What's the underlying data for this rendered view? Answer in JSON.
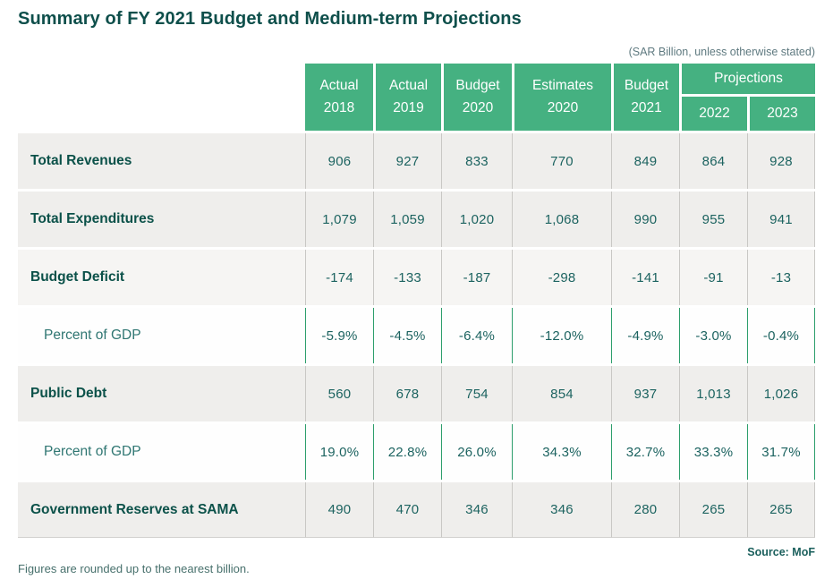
{
  "page": {
    "title": "Summary of FY 2021 Budget and Medium-term Projections",
    "unit_note": "(SAR Billion, unless otherwise stated)",
    "source": "Source: MoF",
    "footnote": "Figures are rounded up to the nearest billion."
  },
  "table": {
    "column_headers": [
      {
        "line1": "Actual",
        "line2": "2018"
      },
      {
        "line1": "Actual",
        "line2": "2019"
      },
      {
        "line1": "Budget",
        "line2": "2020"
      },
      {
        "line1": "Estimates",
        "line2": "2020"
      },
      {
        "line1": "Budget",
        "line2": "2021"
      }
    ],
    "projections_header": {
      "label": "Projections",
      "years": [
        "2022",
        "2023"
      ]
    },
    "rows": [
      {
        "label": "Total Revenues",
        "values": [
          "906",
          "927",
          "833",
          "770",
          "849",
          "864",
          "928"
        ]
      },
      {
        "label": "Total Expenditures",
        "values": [
          "1,079",
          "1,059",
          "1,020",
          "1,068",
          "990",
          "955",
          "941"
        ]
      },
      {
        "label": "Budget Deficit",
        "values": [
          "-174",
          "-133",
          "-187",
          "-298",
          "-141",
          "-91",
          "-13"
        ]
      },
      {
        "label": "Percent of GDP",
        "values": [
          "-5.9%",
          "-4.5%",
          "-6.4%",
          "-12.0%",
          "-4.9%",
          "-3.0%",
          "-0.4%"
        ]
      },
      {
        "label": "Public Debt",
        "values": [
          "560",
          "678",
          "754",
          "854",
          "937",
          "1,013",
          "1,026"
        ]
      },
      {
        "label": "Percent of GDP",
        "values": [
          "19.0%",
          "22.8%",
          "26.0%",
          "34.3%",
          "32.7%",
          "33.3%",
          "31.7%"
        ]
      },
      {
        "label": "Government Reserves at SAMA",
        "values": [
          "490",
          "470",
          "346",
          "346",
          "280",
          "265",
          "265"
        ]
      }
    ]
  },
  "colors": {
    "header_green": "#45b181",
    "green_divider": "#2d9e6c",
    "gray_divider": "#c9c8c5",
    "gray_row": "#efeeec",
    "light_row": "#f6f5f3",
    "title_teal": "#0e4f4b",
    "number_teal": "#1c6360"
  },
  "chart_data": {
    "type": "table",
    "title": "Summary of FY 2021 Budget and Medium-term Projections",
    "unit": "SAR Billion, unless otherwise stated",
    "columns": [
      "Actual 2018",
      "Actual 2019",
      "Budget 2020",
      "Estimates 2020",
      "Budget 2021",
      "Projections 2022",
      "Projections 2023"
    ],
    "rows": [
      {
        "label": "Total Revenues",
        "values": [
          906,
          927,
          833,
          770,
          849,
          864,
          928
        ]
      },
      {
        "label": "Total Expenditures",
        "values": [
          1079,
          1059,
          1020,
          1068,
          990,
          955,
          941
        ]
      },
      {
        "label": "Budget Deficit",
        "values": [
          -174,
          -133,
          -187,
          -298,
          -141,
          -91,
          -13
        ]
      },
      {
        "label": "Budget Deficit, Percent of GDP",
        "values": [
          -5.9,
          -4.5,
          -6.4,
          -12.0,
          -4.9,
          -3.0,
          -0.4
        ],
        "unit": "%"
      },
      {
        "label": "Public Debt",
        "values": [
          560,
          678,
          754,
          854,
          937,
          1013,
          1026
        ]
      },
      {
        "label": "Public Debt, Percent of GDP",
        "values": [
          19.0,
          22.8,
          26.0,
          34.3,
          32.7,
          33.3,
          31.7
        ],
        "unit": "%"
      },
      {
        "label": "Government Reserves at SAMA",
        "values": [
          490,
          470,
          346,
          346,
          280,
          265,
          265
        ]
      }
    ],
    "source": "MoF",
    "footnote": "Figures are rounded up to the nearest billion."
  }
}
